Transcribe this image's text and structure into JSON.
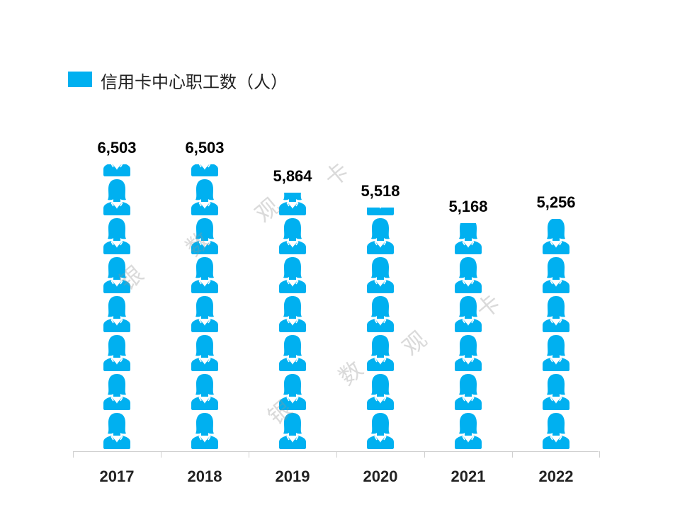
{
  "chart_data": {
    "type": "bar",
    "style": "pictorial-person-icons",
    "categories": [
      "2017",
      "2018",
      "2019",
      "2020",
      "2021",
      "2022"
    ],
    "series": [
      {
        "name": "信用卡中心职工数（人）",
        "values": [
          6503,
          6503,
          5864,
          5518,
          5168,
          5256
        ]
      }
    ],
    "data_labels": [
      "6,503",
      "6,503",
      "5,864",
      "5,518",
      "5,168",
      "5,256"
    ],
    "ylim": [
      0,
      6503
    ],
    "grid": false,
    "legend_position": "top-left",
    "color": "#00b0f0"
  },
  "watermark": [
    "银",
    "数",
    "观",
    "卡"
  ]
}
